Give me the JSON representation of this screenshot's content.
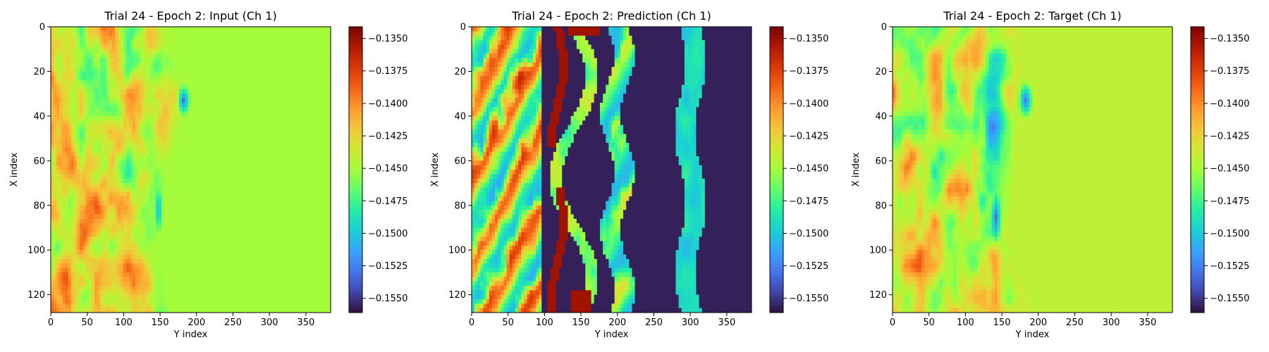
{
  "figure": {
    "background": "#ffffff"
  },
  "colormap": {
    "name": "turbo",
    "stops": [
      "#30123b",
      "#4145ab",
      "#4675ed",
      "#39a2fc",
      "#1bcfd4",
      "#24eca6",
      "#61fc6c",
      "#a4fc3b",
      "#d1e834",
      "#f3c63a",
      "#fe9b2d",
      "#f36315",
      "#d93806",
      "#b11901",
      "#7a0402"
    ]
  },
  "chart_data": [
    {
      "type": "heatmap",
      "title": "Trial 24 - Epoch 2: Input (Ch 1)",
      "xlabel": "Y index",
      "ylabel": "X index",
      "x_ticks": [
        "0",
        "50",
        "100",
        "150",
        "200",
        "250",
        "300",
        "350"
      ],
      "y_ticks": [
        "0",
        "20",
        "40",
        "60",
        "80",
        "100",
        "120"
      ],
      "xlim": [
        0,
        384
      ],
      "ylim": [
        128,
        0
      ],
      "colorbar_ticks": [
        "−0.1350",
        "−0.1375",
        "−0.1400",
        "−0.1425",
        "−0.1450",
        "−0.1475",
        "−0.1500",
        "−0.1525",
        "−0.1550"
      ],
      "color_range": [
        -0.1561,
        -0.1341
      ],
      "pattern": "input"
    },
    {
      "type": "heatmap",
      "title": "Trial 24 - Epoch 2: Prediction (Ch 1)",
      "xlabel": "Y index",
      "ylabel": "X index",
      "x_ticks": [
        "0",
        "50",
        "100",
        "150",
        "200",
        "250",
        "300",
        "350"
      ],
      "y_ticks": [
        "0",
        "20",
        "40",
        "60",
        "80",
        "100",
        "120"
      ],
      "xlim": [
        0,
        384
      ],
      "ylim": [
        128,
        0
      ],
      "colorbar_ticks": [
        "−0.1350",
        "−0.1375",
        "−0.1400",
        "−0.1425",
        "−0.1450",
        "−0.1475",
        "−0.1500",
        "−0.1525",
        "−0.1550"
      ],
      "color_range": [
        -0.1561,
        -0.1341
      ],
      "pattern": "prediction"
    },
    {
      "type": "heatmap",
      "title": "Trial 24 - Epoch 2: Target (Ch 1)",
      "xlabel": "Y index",
      "ylabel": "X index",
      "x_ticks": [
        "0",
        "50",
        "100",
        "150",
        "200",
        "250",
        "300",
        "350"
      ],
      "y_ticks": [
        "0",
        "20",
        "40",
        "60",
        "80",
        "100",
        "120"
      ],
      "xlim": [
        0,
        384
      ],
      "ylim": [
        128,
        0
      ],
      "colorbar_ticks": [
        "−0.1350",
        "−0.1375",
        "−0.1400",
        "−0.1425",
        "−0.1450",
        "−0.1475",
        "−0.1500",
        "−0.1525",
        "−0.1550"
      ],
      "color_range": [
        -0.1561,
        -0.1341
      ],
      "pattern": "target"
    }
  ]
}
